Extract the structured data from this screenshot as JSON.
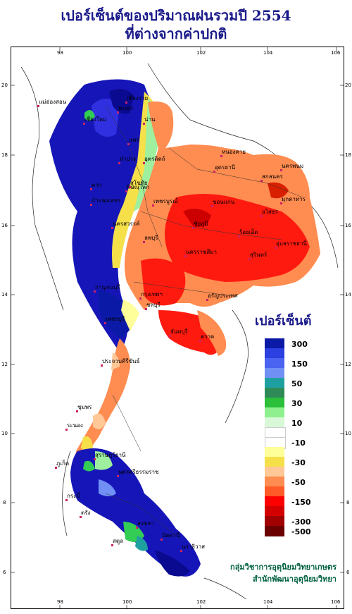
{
  "title": {
    "line1": "เปอร์เซ็นต์ของปริมาณฝนรวมปี 2554",
    "line2": "ที่ต่างจากค่าปกติ"
  },
  "axes": {
    "x_ticks": [
      "98",
      "100",
      "102",
      "104",
      "106"
    ],
    "y_ticks": [
      "20",
      "18",
      "16",
      "14",
      "12",
      "10",
      "8",
      "6"
    ]
  },
  "legend": {
    "title": "เปอร์เซ็นต์",
    "items": [
      {
        "label": "300",
        "color": "#0b1aa6"
      },
      {
        "label": "",
        "color": "#2c3fe0"
      },
      {
        "label": "150",
        "color": "#4a63f0"
      },
      {
        "label": "",
        "color": "#7090f5"
      },
      {
        "label": "50",
        "color": "#1fa0a0"
      },
      {
        "label": "",
        "color": "#2e8b57"
      },
      {
        "label": "30",
        "color": "#2bbf3a"
      },
      {
        "label": "",
        "color": "#8ef08e"
      },
      {
        "label": "10",
        "color": "#d8f8d8"
      },
      {
        "label": "",
        "color": "#ffffff"
      },
      {
        "label": "-10",
        "color": "#ffffff"
      },
      {
        "label": "",
        "color": "#ffff99"
      },
      {
        "label": "-30",
        "color": "#f5e04a"
      },
      {
        "label": "",
        "color": "#ffc896"
      },
      {
        "label": "-50",
        "color": "#ff8c50"
      },
      {
        "label": "",
        "color": "#ff5a28"
      },
      {
        "label": "-150",
        "color": "#ff0000"
      },
      {
        "label": "",
        "color": "#d40000"
      },
      {
        "label": "-300",
        "color": "#a00000"
      },
      {
        "label": "-500",
        "color": "#6a0000"
      }
    ]
  },
  "place_labels": [
    "เชียงราย",
    "แม่ฮ่องสอน",
    "เชียงใหม่",
    "พะเยา",
    "น่าน",
    "แพร่",
    "ลำปาง",
    "อุตรดิตถ์",
    "ตาก",
    "พิษณุโลก",
    "กำแพงเพชร",
    "เพชรบูรณ์",
    "หนองคาย",
    "อุดรธานี",
    "นครพนม",
    "สกลนคร",
    "มุกดาหาร",
    "ขอนแก่น",
    "ชัยภูมิ",
    "นครสวรรค์",
    "นครราชสีมา",
    "อุบลราชธานี",
    "สุรินทร์",
    "กาญจนบุรี",
    "กรุงเทพฯ",
    "ชลบุรี",
    "อรัญประเทศ",
    "ตราด",
    "ประจวบคีรีขันธ์",
    "ชุมพร",
    "ระนอง",
    "สุราษฎร์ธานี",
    "นครศรีธรรมราช",
    "ภูเก็ต",
    "สงขลา",
    "ปัตตานี",
    "นราธิวาส",
    "ลพบุรี",
    "จันทบุรี",
    "เพชรบุรี",
    "สุโขทัย",
    "ร้อยเอ็ด",
    "ยโสธร",
    "กระบี่",
    "ตรัง",
    "สตูล"
  ],
  "credit": {
    "line1": "กลุ่มวิชาการอุตุนิยมวิทยาเกษตร",
    "line2": "สำนักพัฒนาอุตุนิยมวิทยา"
  }
}
